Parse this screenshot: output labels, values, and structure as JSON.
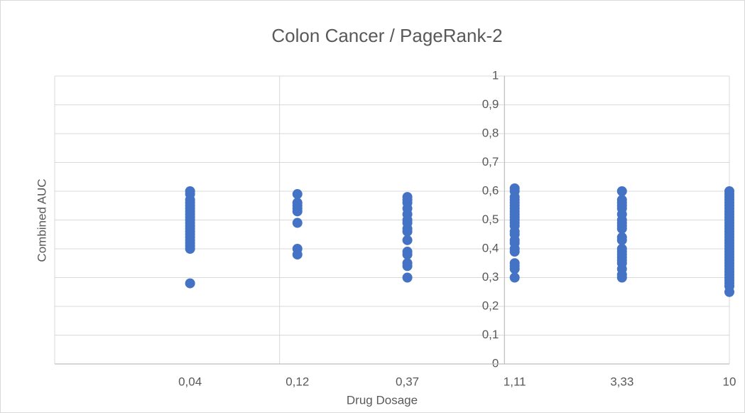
{
  "chart_data": {
    "type": "scatter",
    "title": "Colon Cancer / PageRank-2",
    "x_label": "Drug Dosage",
    "y_label": "Combined AUC",
    "color": "#4472c4",
    "xlog": true,
    "xlim": [
      0.01,
      10
    ],
    "ylim": [
      0,
      1
    ],
    "xgrid": [
      0.01,
      0.1,
      1,
      10
    ],
    "xticks": [
      {
        "value": 0.04,
        "label": "0,04"
      },
      {
        "value": 0.12,
        "label": "0,12"
      },
      {
        "value": 0.37,
        "label": "0,37"
      },
      {
        "value": 1.11,
        "label": "1,11"
      },
      {
        "value": 3.33,
        "label": "3,33"
      },
      10
    ],
    "yticks": [
      0,
      {
        "value": 0.1,
        "label": "0,1"
      },
      {
        "value": 0.2,
        "label": "0,2"
      },
      {
        "value": 0.3,
        "label": "0,3"
      },
      {
        "value": 0.4,
        "label": "0,4"
      },
      {
        "value": 0.5,
        "label": "0,5"
      },
      {
        "value": 0.6,
        "label": "0,6"
      },
      {
        "value": 0.7,
        "label": "0,7"
      },
      {
        "value": 0.8,
        "label": "0,8"
      },
      {
        "value": 0.9,
        "label": "0,9"
      },
      1
    ],
    "grid": true,
    "series": [
      {
        "x": 0.04,
        "values": [
          0.6,
          0.59,
          0.57,
          0.56,
          0.55,
          0.54,
          0.53,
          0.52,
          0.51,
          0.5,
          0.49,
          0.48,
          0.47,
          0.46,
          0.45,
          0.44,
          0.43,
          0.42,
          0.41,
          0.4,
          0.28
        ]
      },
      {
        "x": 0.12,
        "values": [
          0.59,
          0.56,
          0.55,
          0.54,
          0.53,
          0.49,
          0.4,
          0.38
        ]
      },
      {
        "x": 0.37,
        "values": [
          0.58,
          0.57,
          0.56,
          0.54,
          0.52,
          0.5,
          0.49,
          0.47,
          0.46,
          0.43,
          0.39,
          0.38,
          0.35,
          0.34,
          0.3
        ]
      },
      {
        "x": 1.11,
        "values": [
          0.61,
          0.6,
          0.58,
          0.57,
          0.56,
          0.55,
          0.54,
          0.53,
          0.52,
          0.51,
          0.5,
          0.49,
          0.48,
          0.46,
          0.45,
          0.43,
          0.42,
          0.4,
          0.39,
          0.35,
          0.34,
          0.33,
          0.3
        ]
      },
      {
        "x": 3.33,
        "values": [
          0.6,
          0.57,
          0.56,
          0.55,
          0.54,
          0.52,
          0.5,
          0.49,
          0.48,
          0.47,
          0.44,
          0.43,
          0.4,
          0.39,
          0.38,
          0.37,
          0.36,
          0.35,
          0.33,
          0.31,
          0.3
        ]
      },
      {
        "x": 10,
        "values": [
          0.6,
          0.59,
          0.58,
          0.57,
          0.56,
          0.55,
          0.54,
          0.53,
          0.52,
          0.51,
          0.5,
          0.49,
          0.48,
          0.47,
          0.46,
          0.45,
          0.44,
          0.43,
          0.42,
          0.41,
          0.4,
          0.39,
          0.38,
          0.37,
          0.36,
          0.35,
          0.34,
          0.33,
          0.32,
          0.31,
          0.3,
          0.29,
          0.28,
          0.27,
          0.25
        ]
      }
    ]
  }
}
